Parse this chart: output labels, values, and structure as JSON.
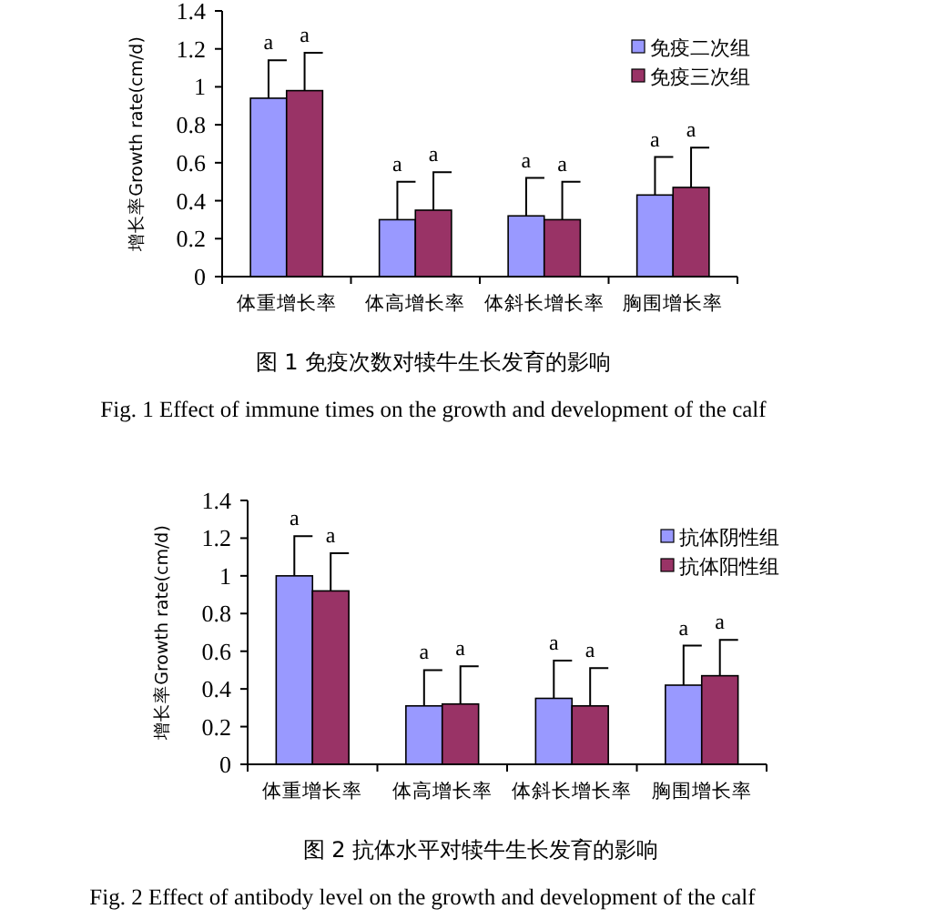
{
  "chart_data": [
    {
      "type": "bar",
      "title": "图 1 免疫次数对犊牛生长发育的影响",
      "subtitle": "Fig. 1 Effect of immune times on the growth and development of the calf",
      "ylabel": "增长率Growth rate(cm/d)",
      "categories": [
        "体重增长率",
        "体高增长率",
        "体斜长增长率",
        "胸围增长率"
      ],
      "series": [
        {
          "name": "免疫二次组",
          "color": "#9999ff",
          "values": [
            0.94,
            0.3,
            0.32,
            0.43
          ],
          "errors": [
            [
              0.94,
              1.14
            ],
            [
              0.3,
              0.5
            ],
            [
              0.32,
              0.52
            ],
            [
              0.43,
              0.63
            ]
          ],
          "value_labels": [
            "a",
            "a",
            "a",
            "a"
          ]
        },
        {
          "name": "免疫三次组",
          "color": "#993366",
          "values": [
            0.98,
            0.35,
            0.3,
            0.47
          ],
          "errors": [
            [
              0.98,
              1.18
            ],
            [
              0.35,
              0.55
            ],
            [
              0.3,
              0.5
            ],
            [
              0.47,
              0.68
            ]
          ],
          "value_labels": [
            "a",
            "a",
            "a",
            "a"
          ]
        }
      ],
      "ylim": [
        0,
        1.4
      ],
      "yticks": [
        0,
        0.2,
        0.4,
        0.6,
        0.8,
        1,
        1.2,
        1.4
      ],
      "legend": "top right"
    },
    {
      "type": "bar",
      "title": "图 2 抗体水平对犊牛生长发育的影响",
      "subtitle": "Fig. 2 Effect of antibody level on the growth and development of the calf",
      "ylabel": "增长率Growth rate(cm/d)",
      "categories": [
        "体重增长率",
        "体高增长率",
        "体斜长增长率",
        "胸围增长率"
      ],
      "series": [
        {
          "name": "抗体阴性组",
          "color": "#9999ff",
          "values": [
            1.0,
            0.31,
            0.35,
            0.42
          ],
          "errors": [
            [
              1.0,
              1.21
            ],
            [
              0.31,
              0.5
            ],
            [
              0.35,
              0.55
            ],
            [
              0.42,
              0.63
            ]
          ],
          "value_labels": [
            "a",
            "a",
            "a",
            "a"
          ]
        },
        {
          "name": "抗体阳性组",
          "color": "#993366",
          "values": [
            0.92,
            0.32,
            0.31,
            0.47
          ],
          "errors": [
            [
              0.92,
              1.12
            ],
            [
              0.32,
              0.52
            ],
            [
              0.31,
              0.51
            ],
            [
              0.47,
              0.66
            ]
          ],
          "value_labels": [
            "a",
            "a",
            "a",
            "a"
          ]
        }
      ],
      "ylim": [
        0,
        1.4
      ],
      "yticks": [
        0,
        0.2,
        0.4,
        0.6,
        0.8,
        1,
        1.2,
        1.4
      ],
      "legend": "top right"
    }
  ]
}
